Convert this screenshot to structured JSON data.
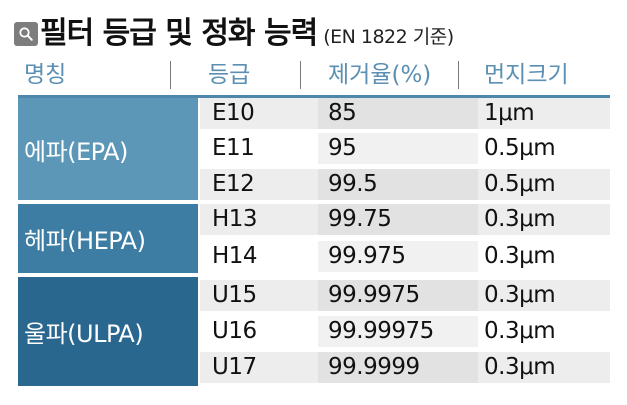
{
  "title": {
    "main": "필터 등급 및 정화 능력",
    "sub": "(EN 1822 기준)",
    "badge_icon": "search-icon"
  },
  "headers": [
    "명칭",
    "등급",
    "제거율(%)",
    "먼지크기"
  ],
  "groups": [
    {
      "label": "에파(EPA)",
      "rows": [
        {
          "grade": "E10",
          "rate": "85",
          "size": "1μm"
        },
        {
          "grade": "E11",
          "rate": "95",
          "size": "0.5μm"
        },
        {
          "grade": "E12",
          "rate": "99.5",
          "size": "0.5μm"
        }
      ]
    },
    {
      "label": "헤파(HEPA)",
      "rows": [
        {
          "grade": "H13",
          "rate": "99.75",
          "size": "0.3μm"
        },
        {
          "grade": "H14",
          "rate": "99.975",
          "size": "0.3μm"
        }
      ]
    },
    {
      "label": "울파(ULPA)",
      "rows": [
        {
          "grade": "U15",
          "rate": "99.9975",
          "size": "0.3μm"
        },
        {
          "grade": "U16",
          "rate": "99.99975",
          "size": "0.3μm"
        },
        {
          "grade": "U17",
          "rate": "99.9999",
          "size": "0.3μm"
        }
      ]
    }
  ],
  "colors": {
    "header_text": "#5b8fb3",
    "rule": "#4f86ad",
    "group_epa": "#5d97b8",
    "group_hepa": "#3d7ca3",
    "group_ulpa": "#2a678f"
  }
}
